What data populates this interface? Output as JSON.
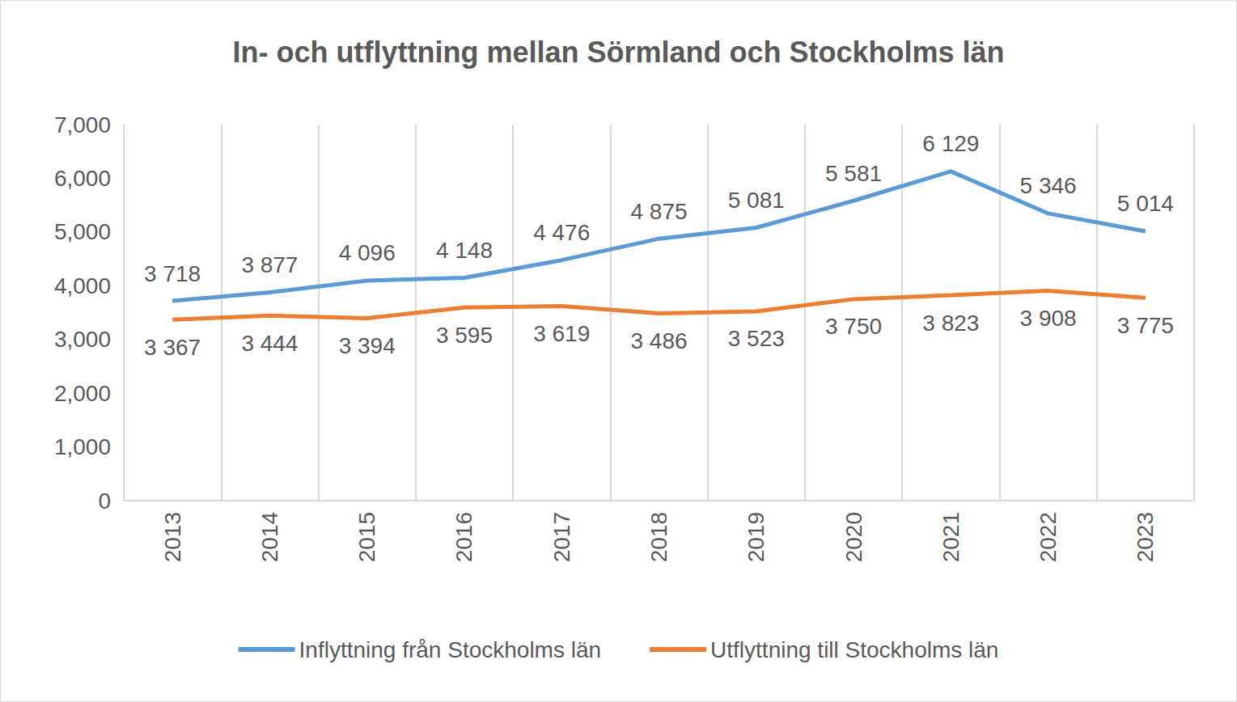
{
  "chart_data": {
    "type": "line",
    "title": "In- och utflyttning mellan Sörmland och Stockholms län",
    "categories": [
      "2013",
      "2014",
      "2015",
      "2016",
      "2017",
      "2018",
      "2019",
      "2020",
      "2021",
      "2022",
      "2023"
    ],
    "series": [
      {
        "name": "Inflyttning från Stockholms län",
        "color": "#5b9bd5",
        "values": [
          3718,
          3877,
          4096,
          4148,
          4476,
          4875,
          5081,
          5581,
          6129,
          5346,
          5014
        ],
        "value_labels": [
          "3 718",
          "3 877",
          "4 096",
          "4 148",
          "4 476",
          "4 875",
          "5 081",
          "5 581",
          "6 129",
          "5 346",
          "5 014"
        ]
      },
      {
        "name": "Utflyttning till Stockholms län",
        "color": "#ed7d31",
        "values": [
          3367,
          3444,
          3394,
          3595,
          3619,
          3486,
          3523,
          3750,
          3823,
          3908,
          3775
        ],
        "value_labels": [
          "3 367",
          "3 444",
          "3 394",
          "3 595",
          "3 619",
          "3 486",
          "3 523",
          "3 750",
          "3 823",
          "3 908",
          "3 775"
        ]
      }
    ],
    "ylim": [
      0,
      7000
    ],
    "yticks": [
      0,
      1000,
      2000,
      3000,
      4000,
      5000,
      6000,
      7000
    ],
    "grid": true,
    "legend": "bottom",
    "data_labels": true
  }
}
